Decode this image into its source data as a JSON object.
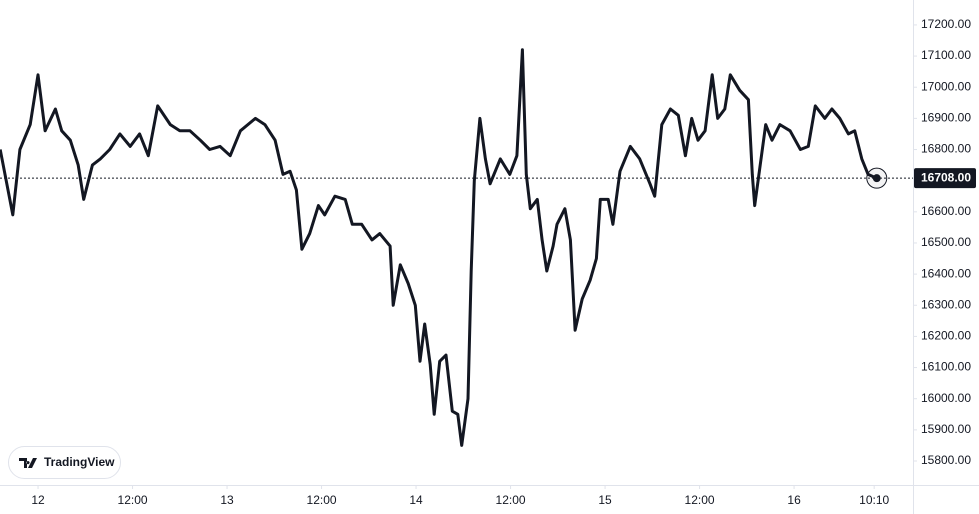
{
  "chart_data": {
    "type": "line",
    "series": [
      {
        "color": "#131722",
        "values": [
          16800,
          16720,
          16590,
          16800,
          16880,
          17040,
          16860,
          16930,
          16860,
          16830,
          16750,
          16640,
          16750,
          16770,
          16800,
          16850,
          16810,
          16850,
          16780,
          16940,
          16880,
          16860,
          16860,
          16830,
          16800,
          16810,
          16780,
          16860,
          16900,
          16880,
          16830,
          16720,
          16730,
          16670,
          16480,
          16530,
          16620,
          16590,
          16650,
          16640,
          16560,
          16560,
          16510,
          16530,
          16490,
          16300,
          16430,
          16370,
          16300,
          16120,
          16240,
          16110,
          15950,
          16120,
          16140,
          15960,
          15950,
          15850,
          16000,
          16410,
          16700,
          16900,
          16770,
          16690,
          16770,
          16720,
          16780,
          17120,
          16720,
          16610,
          16640,
          16510,
          16410,
          16490,
          16560,
          16610,
          16510,
          16220,
          16320,
          16380,
          16450,
          16640,
          16640,
          16560,
          16730,
          16810,
          16770,
          16690,
          16650,
          16880,
          16930,
          16910,
          16780,
          16900,
          16830,
          16860,
          17040,
          16900,
          16930,
          17040,
          16990,
          16960,
          16720,
          16620,
          16750,
          16880,
          16830,
          16880,
          16860,
          16800,
          16810,
          16940,
          16900,
          16930,
          16900,
          16850,
          16860,
          16770,
          16720,
          16708
        ]
      }
    ],
    "x": [
      -4.8,
      -4.2,
      -3.2,
      -2.3,
      -1.0,
      0.0,
      0.9,
      2.2,
      3.0,
      4.1,
      5.1,
      5.8,
      6.9,
      7.9,
      9.1,
      10.4,
      11.7,
      12.9,
      14.0,
      15.2,
      16.8,
      18.0,
      19.3,
      20.6,
      21.8,
      23.1,
      24.4,
      25.7,
      27.6,
      28.8,
      30.1,
      31.1,
      32.0,
      32.8,
      33.5,
      34.5,
      35.6,
      36.4,
      37.7,
      39.0,
      39.9,
      41.1,
      42.4,
      43.4,
      44.7,
      45.1,
      46.0,
      47.0,
      47.9,
      48.5,
      49.1,
      49.8,
      50.3,
      51.0,
      51.8,
      52.6,
      53.3,
      53.8,
      54.6,
      55.0,
      55.4,
      56.1,
      56.8,
      57.4,
      58.7,
      59.9,
      60.8,
      61.5,
      62.0,
      62.5,
      63.4,
      64.0,
      64.6,
      65.4,
      65.9,
      66.9,
      67.6,
      68.2,
      69.1,
      70.1,
      70.9,
      71.4,
      72.4,
      73.0,
      73.9,
      75.2,
      76.4,
      77.7,
      78.3,
      79.2,
      80.3,
      81.3,
      82.2,
      83.0,
      83.8,
      84.7,
      85.6,
      86.3,
      87.2,
      87.9,
      89.1,
      90.2,
      90.7,
      91.0,
      91.7,
      92.4,
      93.2,
      94.2,
      95.5,
      96.8,
      97.8,
      98.7,
      99.9,
      100.8,
      101.8,
      102.9,
      103.7,
      104.6,
      105.4,
      106.5
    ],
    "xlim": [
      -4.83,
      111.1
    ],
    "xticks": [
      {
        "value": 0,
        "label": "12"
      },
      {
        "value": 12,
        "label": "12:00"
      },
      {
        "value": 24,
        "label": "13"
      },
      {
        "value": 36,
        "label": "12:00"
      },
      {
        "value": 48,
        "label": "14"
      },
      {
        "value": 60,
        "label": "12:00"
      },
      {
        "value": 72,
        "label": "15"
      },
      {
        "value": 84,
        "label": "12:00"
      },
      {
        "value": 96,
        "label": "16"
      },
      {
        "value": 106.17,
        "label": "10:10"
      }
    ],
    "ylim": [
      15723,
      17280
    ],
    "yticks": [
      {
        "value": 17200,
        "label": "17200.00"
      },
      {
        "value": 17100,
        "label": "17100.00"
      },
      {
        "value": 17000,
        "label": "17000.00"
      },
      {
        "value": 16900,
        "label": "16900.00"
      },
      {
        "value": 16800,
        "label": "16800.00"
      },
      {
        "value": 16700,
        "label": "16700.00"
      },
      {
        "value": 16600,
        "label": "16600.00"
      },
      {
        "value": 16500,
        "label": "16500.00"
      },
      {
        "value": 16400,
        "label": "16400.00"
      },
      {
        "value": 16300,
        "label": "16300.00"
      },
      {
        "value": 16200,
        "label": "16200.00"
      },
      {
        "value": 16100,
        "label": "16100.00"
      },
      {
        "value": 16000,
        "label": "16000.00"
      },
      {
        "value": 15900,
        "label": "15900.00"
      },
      {
        "value": 15800,
        "label": "15800.00"
      }
    ],
    "price_line": {
      "value": 16708,
      "label": "16708.00"
    },
    "watermark": "TradingView"
  }
}
